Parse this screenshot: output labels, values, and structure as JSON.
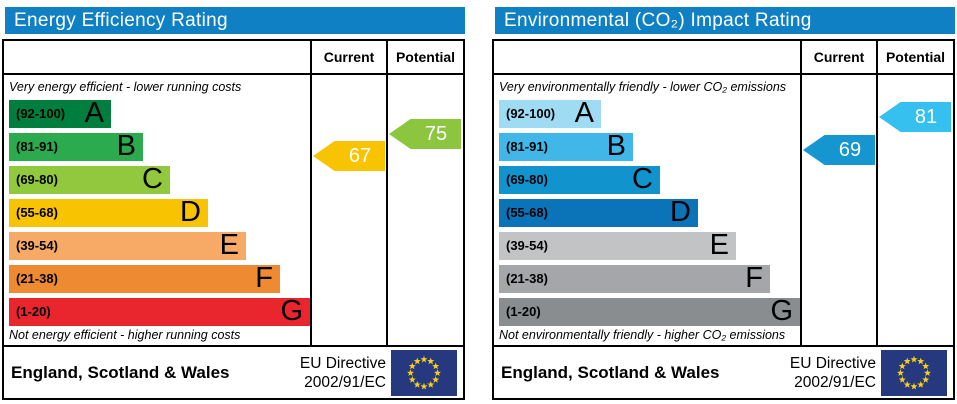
{
  "chart_data": [
    {
      "type": "bar",
      "title": "Energy Efficiency Rating",
      "header_color": "#1080c4",
      "columns": [
        "Current",
        "Potential"
      ],
      "top_note": "Very energy efficient - lower running costs",
      "bottom_note": "Not energy efficient - higher running costs",
      "axis_range": [
        1,
        100
      ],
      "bands": [
        {
          "range": "(92-100)",
          "letter": "A",
          "color": "#007e3d"
        },
        {
          "range": "(81-91)",
          "letter": "B",
          "color": "#2baa4e"
        },
        {
          "range": "(69-80)",
          "letter": "C",
          "color": "#91c83e"
        },
        {
          "range": "(55-68)",
          "letter": "D",
          "color": "#f8c300"
        },
        {
          "range": "(39-54)",
          "letter": "E",
          "color": "#f6aa66"
        },
        {
          "range": "(21-38)",
          "letter": "F",
          "color": "#ee8a31"
        },
        {
          "range": "(1-20)",
          "letter": "G",
          "color": "#e9262d"
        }
      ],
      "current": {
        "value": 67,
        "color": "#f8c300"
      },
      "potential": {
        "value": 75,
        "color": "#8cc63e"
      },
      "footer": {
        "region": "England, Scotland & Wales",
        "directive_line1": "EU Directive",
        "directive_line2": "2002/91/EC",
        "flag_bg": "#26387e",
        "flag_star_color": "#f7d117"
      }
    },
    {
      "type": "bar",
      "title": "Environmental (CO₂) Impact Rating",
      "header_color": "#1080c4",
      "columns": [
        "Current",
        "Potential"
      ],
      "top_note": "Very environmentally friendly - lower CO₂ emissions",
      "bottom_note": "Not environmentally friendly - higher CO₂ emissions",
      "axis_range": [
        1,
        100
      ],
      "bands": [
        {
          "range": "(92-100)",
          "letter": "A",
          "color": "#a0dbf4"
        },
        {
          "range": "(81-91)",
          "letter": "B",
          "color": "#40b7e8"
        },
        {
          "range": "(69-80)",
          "letter": "C",
          "color": "#1193ce"
        },
        {
          "range": "(55-68)",
          "letter": "D",
          "color": "#0b73b7"
        },
        {
          "range": "(39-54)",
          "letter": "E",
          "color": "#c2c3c5"
        },
        {
          "range": "(21-38)",
          "letter": "F",
          "color": "#a4a6a9"
        },
        {
          "range": "(1-20)",
          "letter": "G",
          "color": "#8a8d90"
        }
      ],
      "current": {
        "value": 69,
        "color": "#1596d1"
      },
      "potential": {
        "value": 81,
        "color": "#35c0f0"
      },
      "footer": {
        "region": "England, Scotland & Wales",
        "directive_line1": "EU Directive",
        "directive_line2": "2002/91/EC",
        "flag_bg": "#26387e",
        "flag_star_color": "#f7d117"
      }
    }
  ]
}
